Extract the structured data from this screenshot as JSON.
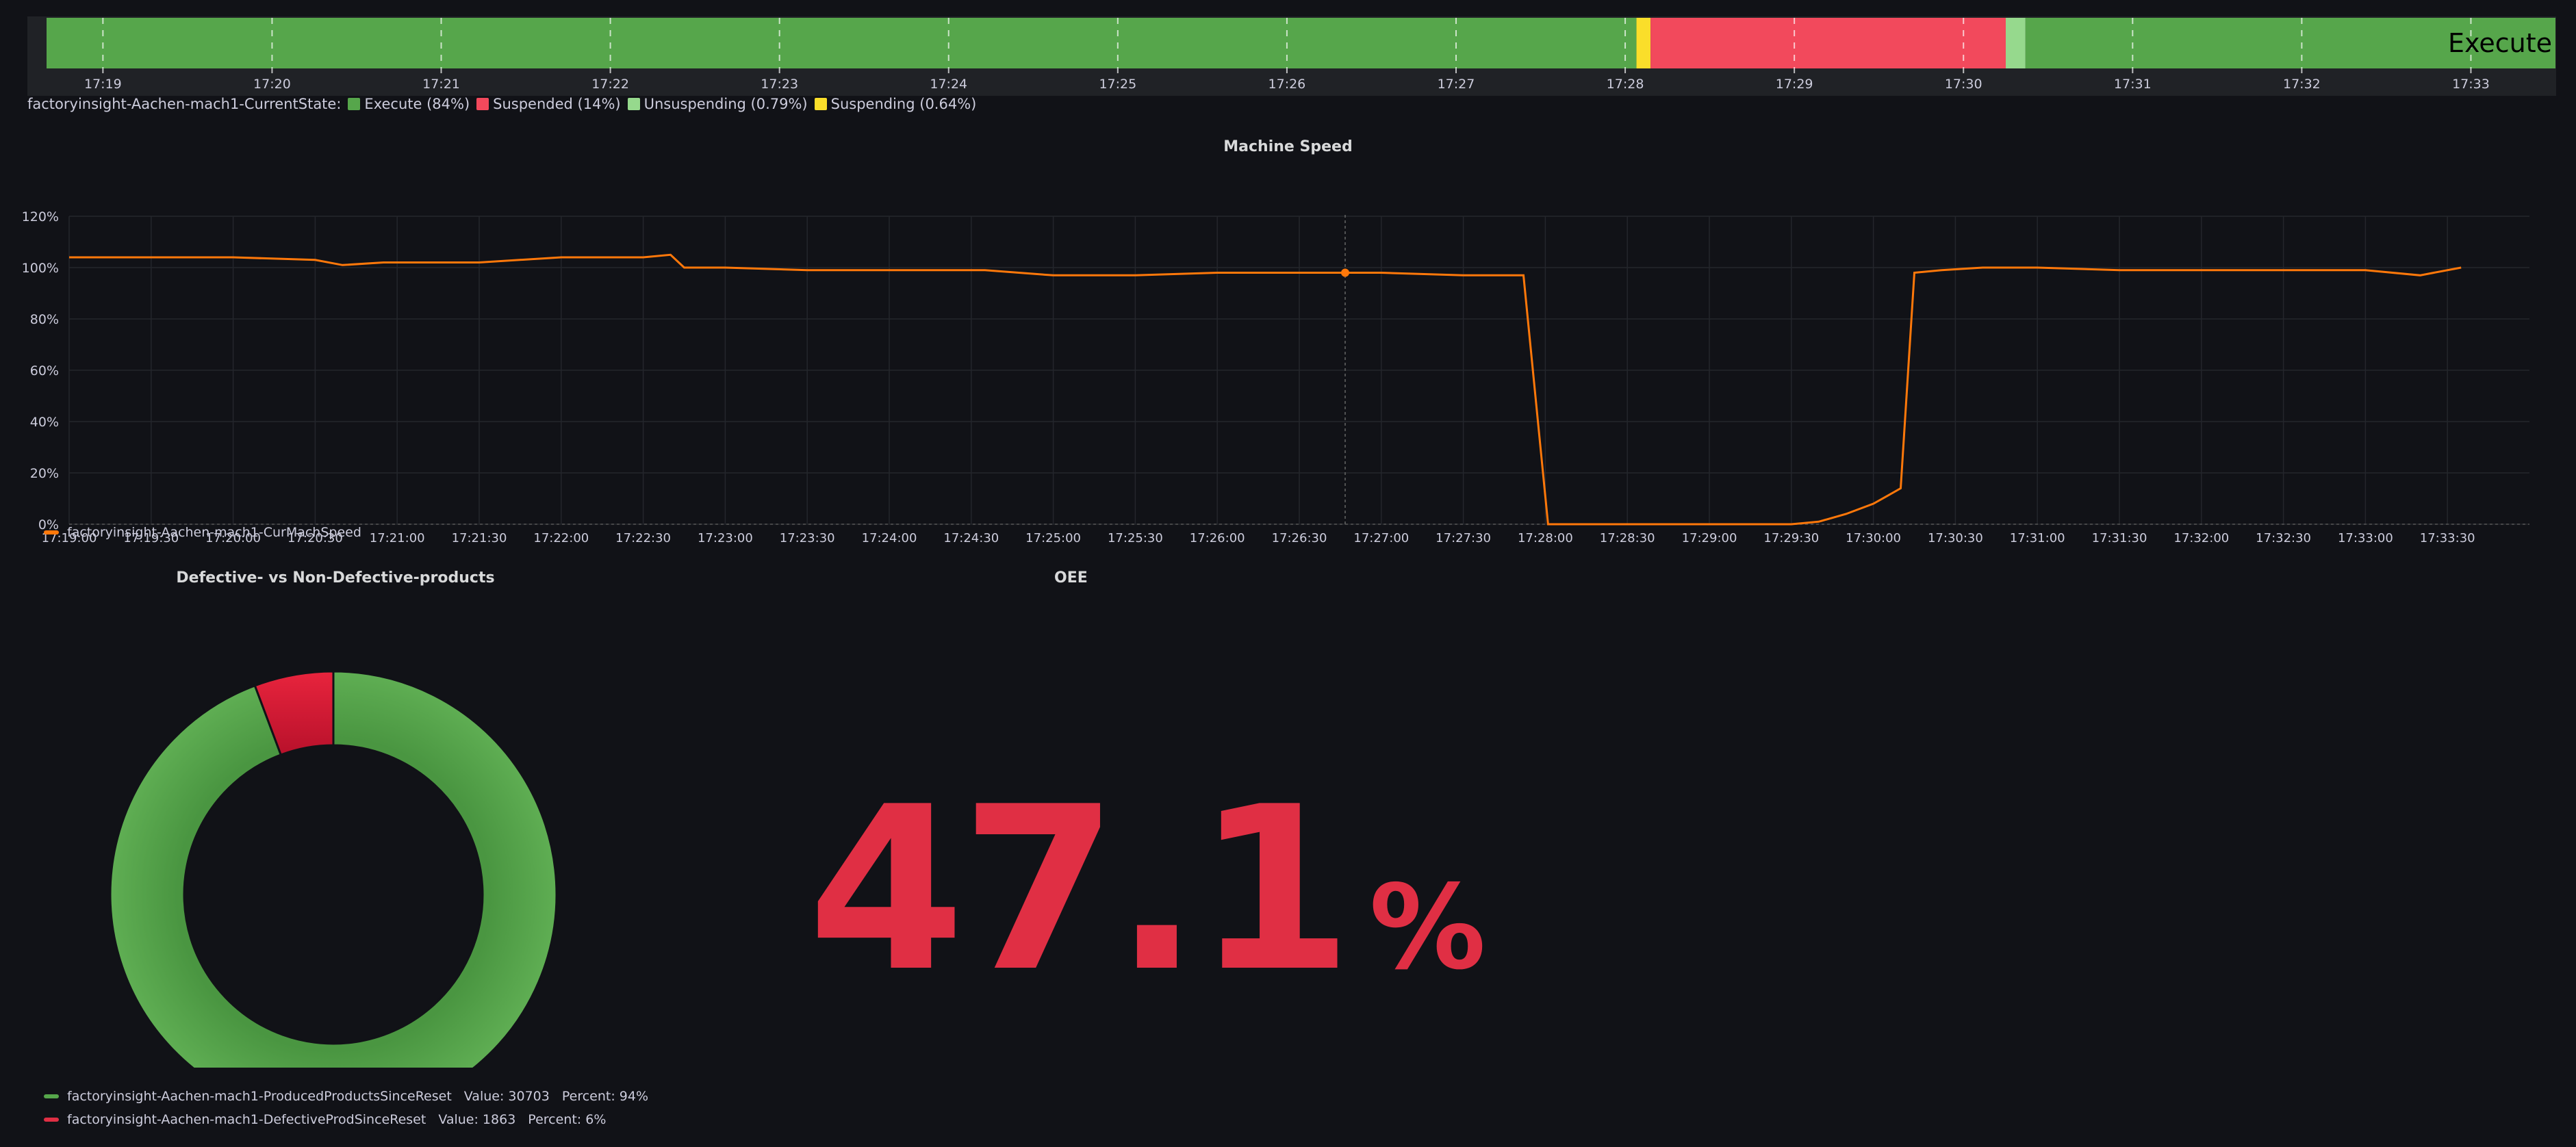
{
  "colors": {
    "background": "#111217",
    "execute": "#56a64b",
    "suspended": "#f2495c",
    "unsuspending": "#96d98d",
    "suspending": "#fade2a",
    "speed_line": "#ff780a",
    "produced": "#56a64b",
    "defective": "#e02f44",
    "oee": "#e02f44"
  },
  "state_timeline": {
    "bar_label": "Execute",
    "legend_title": "factoryinsight-Aachen-mach1-CurrentState:",
    "legend": [
      {
        "label": "Execute (84%)",
        "color": "#56a64b"
      },
      {
        "label": "Suspended (14%)",
        "color": "#f2495c"
      },
      {
        "label": "Unsuspending (0.79%)",
        "color": "#96d98d"
      },
      {
        "label": "Suspending (0.64%)",
        "color": "#fade2a"
      }
    ]
  },
  "speed_panel": {
    "title": "Machine Speed",
    "legend": "factoryinsight-Aachen-mach1-CurMachSpeed"
  },
  "pie_panel": {
    "title": "Defective- vs Non-Defective-products",
    "legend": [
      {
        "name": "factoryinsight-Aachen-mach1-ProducedProductsSinceReset",
        "value_text": "Value: 30703",
        "percent_text": "Percent: 94%",
        "color": "#56a64b"
      },
      {
        "name": "factoryinsight-Aachen-mach1-DefectiveProdSinceReset",
        "value_text": "Value: 1863",
        "percent_text": "Percent: 6%",
        "color": "#e02f44"
      }
    ]
  },
  "oee_panel": {
    "title": "OEE",
    "value": "47.1",
    "unit": "%"
  },
  "chart_data": [
    {
      "type": "state-timeline",
      "x_range": [
        "17:18:40",
        "17:33:30"
      ],
      "tick_labels": [
        "17:19",
        "17:20",
        "17:21",
        "17:22",
        "17:23",
        "17:24",
        "17:25",
        "17:26",
        "17:27",
        "17:28",
        "17:29",
        "17:30",
        "17:31",
        "17:32",
        "17:33"
      ],
      "segments": [
        {
          "state": "Execute",
          "start": "17:18:40",
          "end": "17:28:04"
        },
        {
          "state": "Suspending",
          "start": "17:28:04",
          "end": "17:28:09"
        },
        {
          "state": "Suspended",
          "start": "17:28:09",
          "end": "17:30:15"
        },
        {
          "state": "Unsuspending",
          "start": "17:30:15",
          "end": "17:30:22"
        },
        {
          "state": "Execute",
          "start": "17:30:22",
          "end": "17:33:30"
        }
      ]
    },
    {
      "type": "line",
      "title": "Machine Speed",
      "ylim": [
        0,
        120
      ],
      "y_ticks": [
        "0%",
        "20%",
        "40%",
        "60%",
        "80%",
        "100%",
        "120%"
      ],
      "x_range": [
        "17:19:00",
        "17:34:00"
      ],
      "x_tick_labels": [
        "17:19:00",
        "17:19:30",
        "17:20:00",
        "17:20:30",
        "17:21:00",
        "17:21:30",
        "17:22:00",
        "17:22:30",
        "17:23:00",
        "17:23:30",
        "17:24:00",
        "17:24:30",
        "17:25:00",
        "17:25:30",
        "17:26:00",
        "17:26:30",
        "17:27:00",
        "17:27:30",
        "17:28:00",
        "17:28:30",
        "17:29:00",
        "17:29:30",
        "17:30:00",
        "17:30:30",
        "17:31:00",
        "17:31:30",
        "17:32:00",
        "17:32:30",
        "17:33:00",
        "17:33:30"
      ],
      "grid": true,
      "legend_position": "bottom-left",
      "series": [
        {
          "name": "factoryinsight-Aachen-mach1-CurMachSpeed",
          "x": [
            "17:19:00",
            "17:19:20",
            "17:20:00",
            "17:20:30",
            "17:20:40",
            "17:20:55",
            "17:21:30",
            "17:22:00",
            "17:22:30",
            "17:22:40",
            "17:22:45",
            "17:23:00",
            "17:23:30",
            "17:24:00",
            "17:24:35",
            "17:25:00",
            "17:25:30",
            "17:26:00",
            "17:26:30",
            "17:26:45",
            "17:27:00",
            "17:27:30",
            "17:27:50",
            "17:27:52",
            "17:28:01",
            "17:28:30",
            "17:29:00",
            "17:29:30",
            "17:29:40",
            "17:29:50",
            "17:30:00",
            "17:30:05",
            "17:30:10",
            "17:30:15",
            "17:30:25",
            "17:30:40",
            "17:31:00",
            "17:31:30",
            "17:32:00",
            "17:32:30",
            "17:33:00",
            "17:33:20",
            "17:33:35"
          ],
          "y": [
            104,
            104,
            104,
            103,
            101,
            102,
            102,
            104,
            104,
            105,
            100,
            100,
            99,
            99,
            99,
            97,
            97,
            98,
            98,
            98,
            98,
            97,
            97,
            97,
            0,
            0,
            0,
            0,
            1,
            4,
            8,
            11,
            14,
            98,
            99,
            100,
            100,
            99,
            99,
            99,
            99,
            97,
            100
          ]
        }
      ]
    },
    {
      "type": "pie",
      "title": "Defective- vs Non-Defective-products",
      "labels": [
        "factoryinsight-Aachen-mach1-ProducedProductsSinceReset",
        "factoryinsight-Aachen-mach1-DefectiveProdSinceReset"
      ],
      "values": [
        30703,
        1863
      ],
      "percents": [
        94,
        6
      ],
      "legend_position": "bottom"
    }
  ]
}
